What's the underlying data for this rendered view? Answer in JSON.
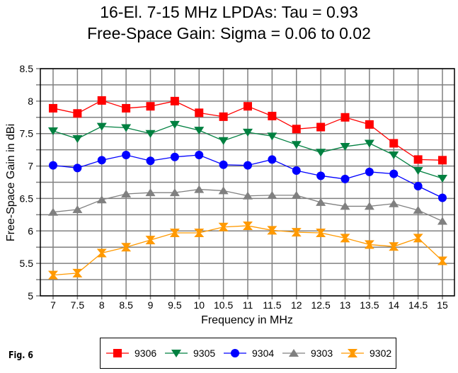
{
  "chart_data": {
    "type": "line",
    "title": "16-El. 7-15 MHz LPDAs:  Tau = 0.93",
    "subtitle": "Free-Space Gain:  Sigma = 0.06 to 0.02",
    "xlabel": "Frequency in MHz",
    "ylabel": "Free-Space Gain in dBi",
    "x": [
      7,
      7.5,
      8,
      8.5,
      9,
      9.5,
      10,
      10.5,
      11,
      11.5,
      12,
      12.5,
      13,
      13.5,
      14,
      14.5,
      15
    ],
    "x_tick_labels": [
      "7",
      "7.5",
      "8",
      "8.5",
      "9",
      "9.5",
      "10",
      "10.5",
      "11",
      "11.5",
      "12",
      "12.5",
      "13",
      "13.5",
      "14",
      "14.5",
      "15"
    ],
    "xlim": [
      7,
      15
    ],
    "ylim": [
      5,
      8.5
    ],
    "y_ticks": [
      5,
      5.5,
      6,
      6.5,
      7,
      7.5,
      8,
      8.5
    ],
    "y_tick_labels": [
      "5",
      "5.5",
      "6",
      "6.5",
      "7",
      "7.5",
      "8",
      "8.5"
    ],
    "y_minor_step": 0.25,
    "grid": true,
    "legend_position": "bottom",
    "series": [
      {
        "name": "9306",
        "color": "#FF0000",
        "marker": "square",
        "values": [
          7.89,
          7.81,
          8.01,
          7.89,
          7.92,
          8.0,
          7.82,
          7.76,
          7.92,
          7.77,
          7.57,
          7.6,
          7.75,
          7.64,
          7.35,
          7.1,
          7.09
        ]
      },
      {
        "name": "9305",
        "color": "#008040",
        "marker": "triangle-down",
        "values": [
          7.54,
          7.42,
          7.61,
          7.59,
          7.5,
          7.64,
          7.55,
          7.39,
          7.52,
          7.46,
          7.33,
          7.21,
          7.3,
          7.35,
          7.17,
          6.93,
          6.81
        ]
      },
      {
        "name": "9304",
        "color": "#0000FF",
        "marker": "circle",
        "values": [
          7.01,
          6.97,
          7.09,
          7.17,
          7.08,
          7.14,
          7.17,
          7.02,
          7.01,
          7.1,
          6.93,
          6.85,
          6.8,
          6.91,
          6.88,
          6.69,
          6.51
        ]
      },
      {
        "name": "9303",
        "color": "#808080",
        "marker": "triangle-up",
        "values": [
          6.29,
          6.33,
          6.48,
          6.57,
          6.59,
          6.59,
          6.64,
          6.62,
          6.54,
          6.55,
          6.55,
          6.44,
          6.38,
          6.38,
          6.42,
          6.32,
          6.15
        ]
      },
      {
        "name": "9302",
        "color": "#FF9900",
        "marker": "hourglass",
        "values": [
          5.32,
          5.35,
          5.66,
          5.75,
          5.86,
          5.97,
          5.97,
          6.06,
          6.08,
          6.01,
          5.98,
          5.97,
          5.89,
          5.79,
          5.76,
          5.89,
          5.54
        ]
      }
    ]
  },
  "figure_label": "Fig. 6"
}
